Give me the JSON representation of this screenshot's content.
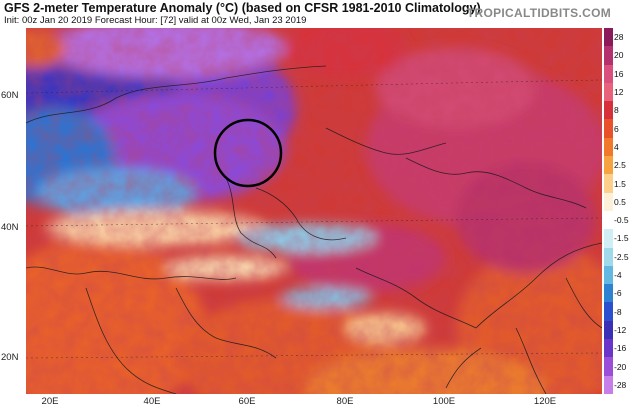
{
  "header": {
    "title": "GFS 2-meter Temperature Anomaly (°C) (based on CFSR 1981-2010 Climatology)",
    "subtitle": "Init: 00z Jan 20 2019   Forecast Hour: [72]   valid at 00z Wed, Jan 23 2019",
    "brand": "TROPICALTIDBITS.COM"
  },
  "map": {
    "lat_labels": [
      "60N",
      "40N",
      "20N"
    ],
    "lon_labels": [
      "20E",
      "40E",
      "60E",
      "80E",
      "100E",
      "120E"
    ],
    "highlight": "circle over the Ural / Caspian region"
  },
  "colorbar": {
    "ticks": [
      "28",
      "20",
      "16",
      "12",
      "8",
      "6",
      "4",
      "2.5",
      "1.5",
      "0.5",
      "-0.5",
      "-1.5",
      "-2.5",
      "-4",
      "-6",
      "-8",
      "-12",
      "-16",
      "-20",
      "-28"
    ],
    "colors": [
      "#8b1a5a",
      "#b5316e",
      "#d94f7d",
      "#e8627c",
      "#d7303b",
      "#e8512a",
      "#f07a2a",
      "#f6a340",
      "#fcd08a",
      "#fdf0d8",
      "#ffffff",
      "#d2eef5",
      "#9fd9ea",
      "#62b8e0",
      "#2d83d1",
      "#2c4fcf",
      "#3a2fb5",
      "#6a36c9",
      "#9b4ed8",
      "#c77ee8"
    ]
  }
}
